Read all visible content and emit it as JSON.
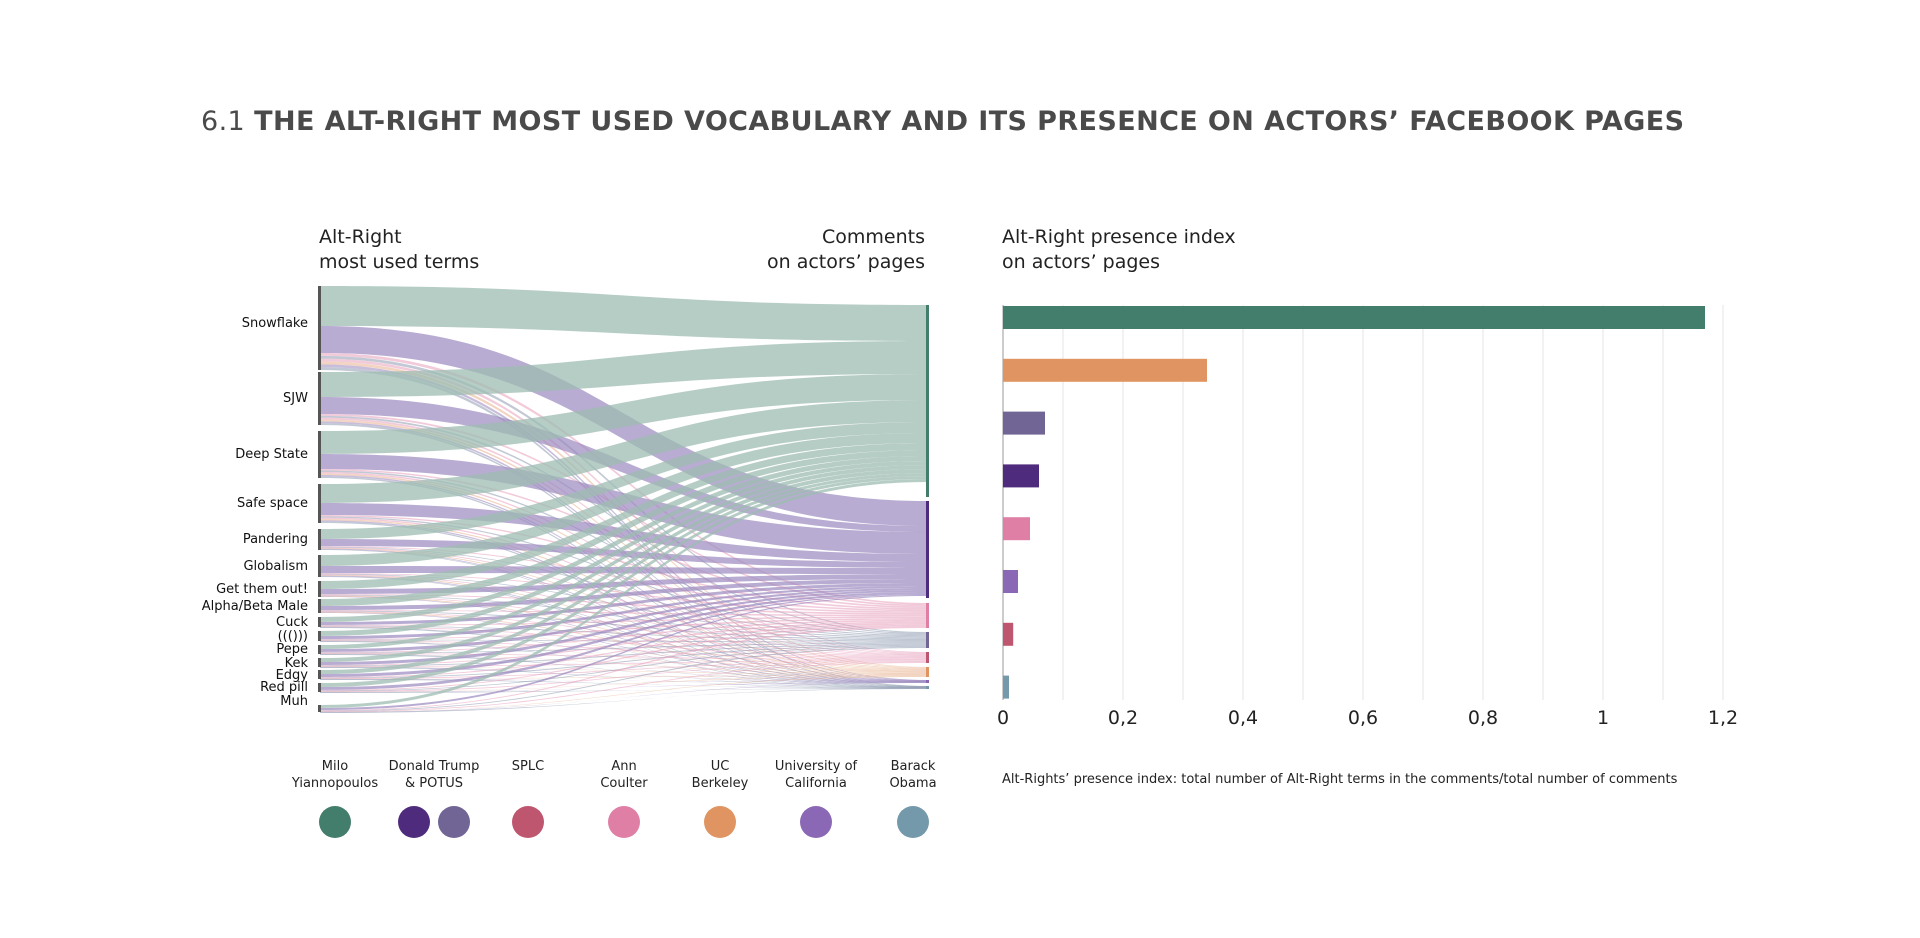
{
  "title": {
    "number": "6.1",
    "text": "THE ALT-RIGHT MOST USED VOCABULARY AND ITS PRESENCE ON ACTORS’ FACEBOOK PAGES"
  },
  "sankey_left_header": [
    "Alt-Right",
    "most used terms"
  ],
  "sankey_right_header": [
    "Comments",
    "on actors’ pages"
  ],
  "bar_header": [
    "Alt-Right presence index",
    "on actors’ pages"
  ],
  "note": "Alt-Rights’ presence index: total number of Alt-Right terms in the comments/total number of comments",
  "colors": {
    "milo": "#437d6c",
    "trump": "#4f2b7e",
    "potus": "#706595",
    "splc": "#bf566f",
    "coulter": "#e07fa5",
    "ucb": "#e09461",
    "uc": "#8b68b5",
    "obama": "#7399aa"
  },
  "legend": [
    {
      "lines": [
        "Milo",
        "Yiannopoulos"
      ],
      "dots": [
        "milo-dot-icon"
      ],
      "colors": [
        "#437d6c"
      ]
    },
    {
      "lines": [
        "Donald Trump",
        "& POTUS"
      ],
      "dots": [
        "trump-dot-icon",
        "potus-dot-icon"
      ],
      "colors": [
        "#4f2b7e",
        "#706595"
      ]
    },
    {
      "lines": [
        "SPLC"
      ],
      "dots": [
        "splc-dot-icon"
      ],
      "colors": [
        "#bf566f"
      ]
    },
    {
      "lines": [
        "Ann",
        "Coulter"
      ],
      "dots": [
        "coulter-dot-icon"
      ],
      "colors": [
        "#e07fa5"
      ]
    },
    {
      "lines": [
        "UC",
        "Berkeley"
      ],
      "dots": [
        "berkeley-dot-icon"
      ],
      "colors": [
        "#e09461"
      ]
    },
    {
      "lines": [
        "University of",
        "California"
      ],
      "dots": [
        "uc-dot-icon"
      ],
      "colors": [
        "#8b68b5"
      ]
    },
    {
      "lines": [
        "Barack",
        "Obama"
      ],
      "dots": [
        "obama-dot-icon"
      ],
      "colors": [
        "#7399aa"
      ]
    }
  ],
  "chart_data": [
    {
      "type": "sankey",
      "left_nodes": [
        "Snowflake",
        "SJW",
        "Deep State",
        "Safe space",
        "Pandering",
        "Globalism",
        "Get them out!",
        "Alpha/Beta Male",
        "Cuck",
        "((()))",
        "Pepe",
        "Kek",
        "Edgy",
        "Red pill",
        "Muh"
      ],
      "right_nodes": [
        "Milo Yiannopoulos",
        "Donald Trump",
        "Ann Coulter",
        "POTUS",
        "SPLC",
        "UC Berkeley",
        "University of California",
        "Barack Obama"
      ]
    },
    {
      "type": "bar",
      "orientation": "horizontal",
      "categories": [
        "Milo Yiannopoulos",
        "UC Berkeley",
        "POTUS",
        "Donald Trump",
        "Ann Coulter",
        "University of California",
        "SPLC",
        "Barack Obama"
      ],
      "values": [
        1.17,
        0.34,
        0.07,
        0.06,
        0.045,
        0.025,
        0.017,
        0.01
      ],
      "colors": [
        "#437d6c",
        "#e09461",
        "#706595",
        "#4f2b7e",
        "#e07fa5",
        "#8b68b5",
        "#bf566f",
        "#7399aa"
      ],
      "xlim": [
        0,
        1.2
      ],
      "xticks": [
        "0",
        "0,2",
        "0,4",
        "0,6",
        "0,8",
        "1",
        "1,2"
      ],
      "grid": true
    }
  ]
}
